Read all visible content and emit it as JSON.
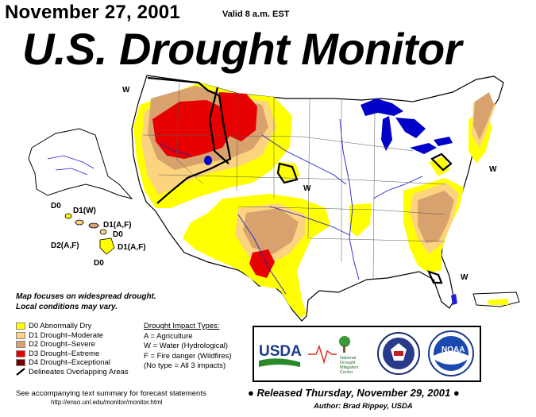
{
  "header": {
    "date": "November 27, 2001",
    "valid": "Valid 8 a.m. EST",
    "title": "U.S. Drought Monitor"
  },
  "map_labels": {
    "west_nw": "W",
    "west_plains": "W",
    "west_ne": "W",
    "west_se": "W",
    "hi_d0": "D0",
    "hi_d1w": "D1(W)",
    "hi_d1af_a": "D1(A,F)",
    "hi_d0_b": "D0",
    "hi_d2af": "D2(A,F)",
    "hi_d1af_b": "D1(A,F)",
    "hi_d0_c": "D0"
  },
  "note": {
    "line1": "Map focuses on widespread drought.",
    "line2": "Local conditions may vary."
  },
  "legend": {
    "items": [
      {
        "label": "D0 Abnormally Dry",
        "color": "#ffff00"
      },
      {
        "label": "D1 Drought–Moderate",
        "color": "#fcd37f"
      },
      {
        "label": "D2 Drought–Severe",
        "color": "#d8a26e"
      },
      {
        "label": "D3 Drought–Extreme",
        "color": "#e60000"
      },
      {
        "label": "D4 Drought–Exceptional",
        "color": "#730000"
      }
    ],
    "overlap_label": "Delineates Overlapping Areas"
  },
  "impacts": {
    "header": "Drought Impact Types:",
    "lines": [
      "A = Agriculture",
      "W = Water (Hydrological)",
      "F = Fire danger (Wildfires)",
      "(No type = All 3 impacts)"
    ]
  },
  "logos": {
    "usda": "USDA",
    "ndmc_line1": "National",
    "ndmc_line2": "Drought",
    "ndmc_line3": "Mitigation",
    "ndmc_line4": "Center",
    "noaa": "NOAA"
  },
  "footer": {
    "line1": "See accompanying text summary for forecast statements",
    "url": "http://enso.unl.edu/monitor/monitor.html",
    "released": "Released Thursday, November 29, 2001",
    "author": "Author:  Brad Rippey, USDA"
  },
  "colors": {
    "d0": "#ffff00",
    "d1": "#fcd37f",
    "d2": "#d8a26e",
    "d3": "#e60000",
    "d4": "#730000",
    "water": "#0000c8",
    "rivers": "#2222cc"
  }
}
